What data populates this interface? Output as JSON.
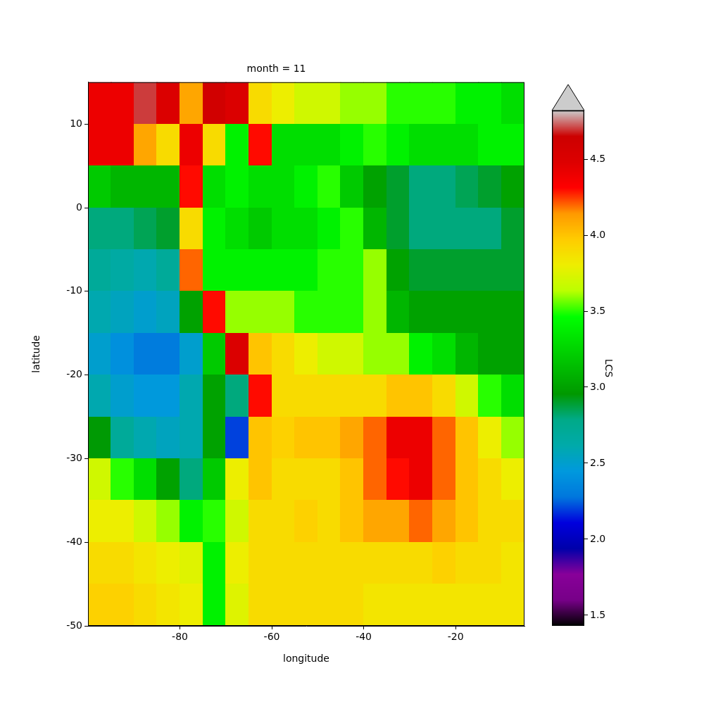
{
  "chart_data": {
    "type": "heatmap",
    "title": "month = 11",
    "x_label": "longitude",
    "y_label": "latitude",
    "x": [
      -97.5,
      -92.5,
      -87.5,
      -82.5,
      -77.5,
      -72.5,
      -67.5,
      -62.5,
      -57.5,
      -52.5,
      -47.5,
      -42.5,
      -37.5,
      -32.5,
      -27.5,
      -22.5,
      -17.5,
      -12.5,
      -7.5
    ],
    "y": [
      12.5,
      7.5,
      2.5,
      -2.5,
      -7.5,
      -12.5,
      -17.5,
      -22.5,
      -27.5,
      -32.5,
      -37.5,
      -42.5,
      -47.5
    ],
    "values": [
      [
        4.4,
        4.4,
        4.7,
        4.5,
        4.1,
        4.6,
        4.5,
        3.9,
        3.8,
        3.7,
        3.7,
        3.6,
        3.6,
        3.5,
        3.5,
        3.5,
        3.4,
        3.4,
        3.3
      ],
      [
        4.4,
        4.4,
        4.1,
        3.9,
        4.4,
        3.9,
        3.4,
        4.3,
        3.3,
        3.3,
        3.3,
        3.4,
        3.5,
        3.4,
        3.3,
        3.3,
        3.3,
        3.4,
        3.4
      ],
      [
        3.2,
        3.1,
        3.1,
        3.1,
        4.3,
        3.3,
        3.4,
        3.3,
        3.3,
        3.4,
        3.5,
        3.2,
        3.0,
        2.9,
        2.8,
        2.8,
        2.85,
        2.9,
        3.0
      ],
      [
        2.8,
        2.8,
        2.85,
        2.9,
        3.9,
        3.4,
        3.3,
        3.2,
        3.3,
        3.3,
        3.4,
        3.5,
        3.1,
        2.9,
        2.8,
        2.8,
        2.8,
        2.8,
        2.9
      ],
      [
        2.7,
        2.65,
        2.6,
        2.7,
        4.2,
        3.4,
        3.4,
        3.4,
        3.4,
        3.4,
        3.5,
        3.5,
        3.6,
        3.0,
        2.9,
        2.9,
        2.9,
        2.9,
        2.9
      ],
      [
        2.6,
        2.55,
        2.5,
        2.55,
        3.0,
        4.3,
        3.6,
        3.6,
        3.6,
        3.5,
        3.5,
        3.5,
        3.6,
        3.1,
        3.0,
        3.0,
        3.0,
        3.0,
        3.0
      ],
      [
        2.5,
        2.4,
        2.3,
        2.3,
        2.5,
        3.2,
        4.5,
        4.0,
        3.9,
        3.8,
        3.7,
        3.7,
        3.6,
        3.6,
        3.4,
        3.3,
        3.1,
        3.0,
        3.0
      ],
      [
        2.6,
        2.5,
        2.45,
        2.45,
        2.6,
        3.0,
        2.8,
        4.3,
        3.9,
        3.9,
        3.9,
        3.9,
        3.9,
        4.0,
        4.0,
        3.9,
        3.7,
        3.5,
        3.3
      ],
      [
        2.95,
        2.7,
        2.6,
        2.55,
        2.6,
        3.0,
        2.2,
        4.0,
        3.95,
        4.0,
        4.0,
        4.1,
        4.2,
        4.4,
        4.4,
        4.2,
        4.0,
        3.8,
        3.6
      ],
      [
        3.7,
        3.5,
        3.3,
        3.0,
        2.8,
        3.2,
        3.8,
        4.0,
        3.9,
        3.9,
        3.9,
        4.0,
        4.2,
        4.3,
        4.4,
        4.2,
        4.0,
        3.9,
        3.8
      ],
      [
        3.8,
        3.8,
        3.7,
        3.6,
        3.4,
        3.5,
        3.7,
        3.9,
        3.9,
        3.95,
        3.9,
        4.0,
        4.1,
        4.1,
        4.2,
        4.1,
        4.0,
        3.9,
        3.9
      ],
      [
        3.9,
        3.9,
        3.85,
        3.8,
        3.75,
        3.4,
        3.8,
        3.9,
        3.9,
        3.9,
        3.9,
        3.9,
        3.9,
        3.9,
        3.9,
        3.95,
        3.9,
        3.9,
        3.85
      ],
      [
        3.95,
        3.95,
        3.9,
        3.85,
        3.8,
        3.4,
        3.75,
        3.9,
        3.9,
        3.9,
        3.9,
        3.9,
        3.85,
        3.85,
        3.85,
        3.85,
        3.85,
        3.85,
        3.85
      ]
    ],
    "xlim": [
      -100,
      -5
    ],
    "ylim": [
      -50,
      15
    ],
    "xticks": [
      -80,
      -60,
      -40,
      -20
    ],
    "yticks": [
      -50,
      -40,
      -30,
      -20,
      -10,
      0,
      10
    ],
    "grid": false,
    "colorbar": {
      "label": "LCS",
      "range": [
        1.43,
        4.82
      ],
      "ticks": [
        1.5,
        {
          "value": 2,
          "label": "2.0"
        },
        2.5,
        {
          "value": 3,
          "label": "3.0"
        },
        3.5,
        {
          "value": 4,
          "label": "4.0"
        },
        4.5
      ]
    }
  }
}
